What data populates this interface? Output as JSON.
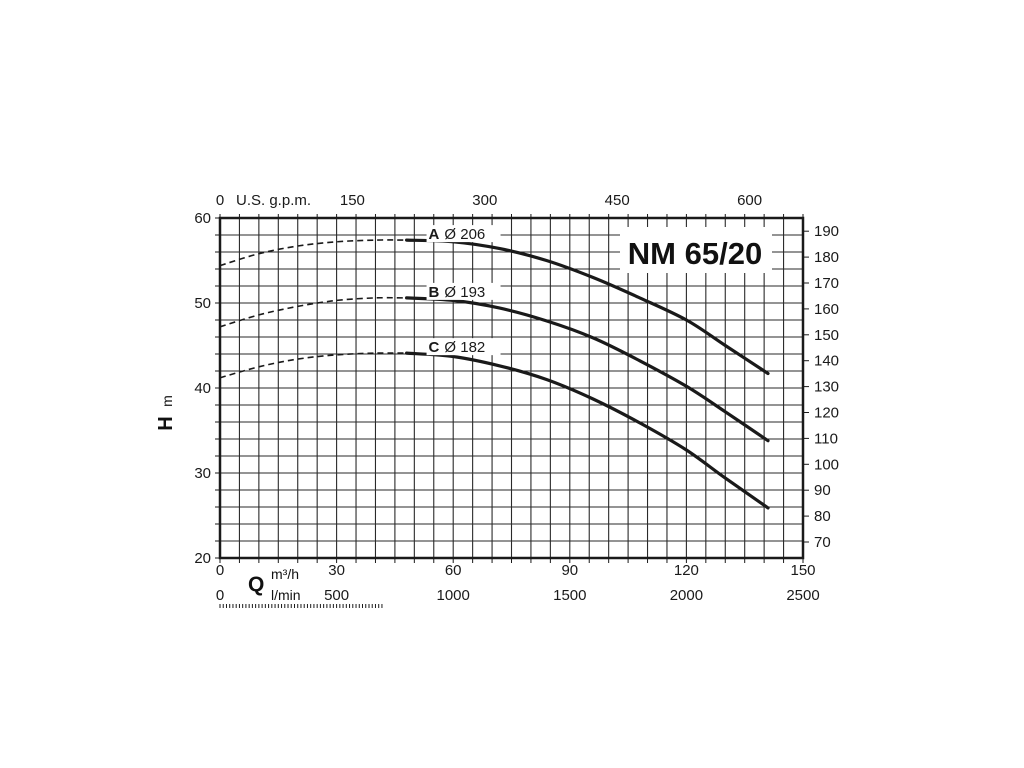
{
  "chart_data": {
    "type": "line",
    "title": "NM 65/20",
    "ylabel": "H",
    "ylabel_unit": "m",
    "ylabel_right": "",
    "ylim": [
      20,
      60
    ],
    "yticks": [
      "20",
      "30",
      "40",
      "50",
      "60"
    ],
    "y_right_ticks": [
      "70",
      "80",
      "90",
      "100",
      "110",
      "120",
      "130",
      "140",
      "150",
      "160",
      "170",
      "180",
      "190"
    ],
    "xlabel": "Q",
    "xlabel_units": [
      "m³/h",
      "l/min"
    ],
    "xlim": [
      0,
      150
    ],
    "x_top_label": "U.S. g.p.m.",
    "x_top_ticks": [
      "0",
      "150",
      "300",
      "450",
      "600"
    ],
    "x_m3h_ticks": [
      "0",
      "30",
      "60",
      "90",
      "120",
      "150"
    ],
    "x_lmin_ticks": [
      "0",
      "500",
      "1000",
      "1500",
      "2000",
      "2500"
    ],
    "grid": true,
    "series": [
      {
        "name": "A",
        "diameter": "Ø 206",
        "dashed_until": 48,
        "x": [
          0,
          10,
          20,
          30,
          40,
          48,
          60,
          72,
          84,
          96,
          108,
          120,
          130,
          141
        ],
        "y": [
          54.4,
          55.8,
          56.7,
          57.2,
          57.4,
          57.4,
          57.2,
          56.4,
          55.0,
          53.0,
          50.6,
          48.0,
          45.0,
          41.7
        ]
      },
      {
        "name": "B",
        "diameter": "Ø 193",
        "dashed_until": 48,
        "x": [
          0,
          10,
          20,
          30,
          40,
          48,
          60,
          72,
          84,
          96,
          108,
          120,
          130,
          141
        ],
        "y": [
          47.2,
          48.6,
          49.6,
          50.3,
          50.6,
          50.6,
          50.3,
          49.4,
          47.9,
          45.9,
          43.2,
          40.2,
          37.2,
          33.8
        ]
      },
      {
        "name": "C",
        "diameter": "Ø 182",
        "dashed_until": 48,
        "x": [
          0,
          10,
          20,
          30,
          40,
          48,
          60,
          72,
          84,
          96,
          108,
          120,
          130,
          141
        ],
        "y": [
          41.2,
          42.5,
          43.4,
          43.9,
          44.1,
          44.1,
          43.7,
          42.6,
          41.0,
          38.7,
          35.9,
          32.7,
          29.4,
          25.9
        ]
      }
    ]
  }
}
